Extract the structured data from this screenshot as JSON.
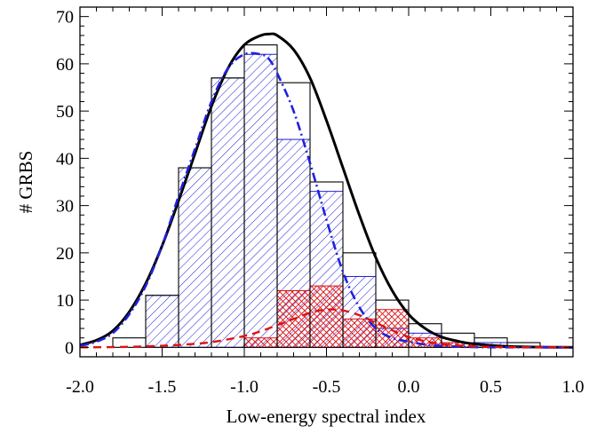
{
  "chart_data": {
    "type": "bar",
    "title": "",
    "xlabel": "Low-energy spectral index",
    "ylabel": "# GRBS",
    "xlim": [
      -2.0,
      1.0
    ],
    "ylim": [
      -2,
      72
    ],
    "grid": false,
    "legend": "none",
    "x_ticks": [
      "-2.0",
      "-1.5",
      "-1.0",
      "-0.5",
      "0.0",
      "0.5",
      "1.0"
    ],
    "y_ticks": [
      "0",
      "10",
      "20",
      "30",
      "40",
      "50",
      "60",
      "70"
    ],
    "bin_edges": [
      -2.0,
      -1.8,
      -1.6,
      -1.4,
      -1.2,
      -1.0,
      -0.8,
      -0.6,
      -0.4,
      -0.2,
      0.0,
      0.2,
      0.4,
      0.6,
      0.8,
      1.0
    ],
    "series": [
      {
        "style": "black outline histogram",
        "color": "#000000",
        "values": [
          0,
          2,
          11,
          38,
          57,
          64,
          56,
          35,
          20,
          10,
          5,
          3,
          2,
          1,
          0
        ]
      },
      {
        "style": "blue hatched histogram",
        "color": "#1f1fd6",
        "values": [
          0,
          0,
          11,
          38,
          57,
          62,
          44,
          33,
          15,
          4,
          3,
          1,
          1,
          0,
          0
        ]
      },
      {
        "style": "red cross-hatched histogram",
        "color": "#e01010",
        "values": [
          0,
          0,
          0,
          0,
          0,
          2,
          12,
          13,
          6,
          8,
          2,
          1,
          0,
          0,
          0
        ]
      }
    ],
    "curves": [
      {
        "style": "solid",
        "color": "#000000",
        "x": [
          -2.0,
          -1.9,
          -1.8,
          -1.7,
          -1.6,
          -1.5,
          -1.4,
          -1.3,
          -1.2,
          -1.1,
          -1.0,
          -0.9,
          -0.85,
          -0.8,
          -0.7,
          -0.6,
          -0.5,
          -0.4,
          -0.3,
          -0.2,
          -0.1,
          0.0,
          0.1,
          0.2,
          0.3,
          0.4,
          0.6,
          0.8,
          1.0
        ],
        "y": [
          0.5,
          1.5,
          3.5,
          7.5,
          13.5,
          21.5,
          31,
          41,
          51,
          59,
          64,
          66,
          66.3,
          66,
          63,
          57,
          48,
          38,
          28,
          19,
          12,
          7,
          4,
          2.2,
          1.3,
          0.7,
          0.2,
          0.05,
          0
        ]
      },
      {
        "style": "dash-dot",
        "color": "#2020e0",
        "x": [
          -2.0,
          -1.9,
          -1.8,
          -1.7,
          -1.6,
          -1.5,
          -1.4,
          -1.3,
          -1.2,
          -1.1,
          -1.0,
          -0.9,
          -0.85,
          -0.8,
          -0.7,
          -0.6,
          -0.5,
          -0.4,
          -0.3,
          -0.2,
          -0.1,
          0.0,
          0.1,
          0.2,
          0.3,
          0.4,
          0.6,
          0.8,
          1.0
        ],
        "y": [
          0.3,
          1.2,
          3,
          7,
          13,
          21.5,
          32,
          42,
          52,
          59,
          62,
          62,
          61,
          58,
          50,
          39,
          27,
          16,
          8.5,
          4,
          2,
          1.2,
          0.6,
          0.3,
          0.15,
          0.05,
          0,
          0,
          0
        ]
      },
      {
        "style": "dashed",
        "color": "#e01010",
        "x": [
          -2.0,
          -1.8,
          -1.6,
          -1.4,
          -1.2,
          -1.0,
          -0.9,
          -0.8,
          -0.7,
          -0.6,
          -0.5,
          -0.4,
          -0.3,
          -0.2,
          -0.1,
          0.0,
          0.1,
          0.2,
          0.4,
          0.6,
          0.8,
          1.0
        ],
        "y": [
          0,
          0.05,
          0.2,
          0.5,
          1.1,
          2.4,
          3.4,
          4.7,
          6,
          7.3,
          8,
          7.8,
          6.8,
          5.2,
          3.6,
          2.2,
          1.3,
          0.7,
          0.2,
          0.05,
          0,
          0
        ]
      }
    ]
  }
}
